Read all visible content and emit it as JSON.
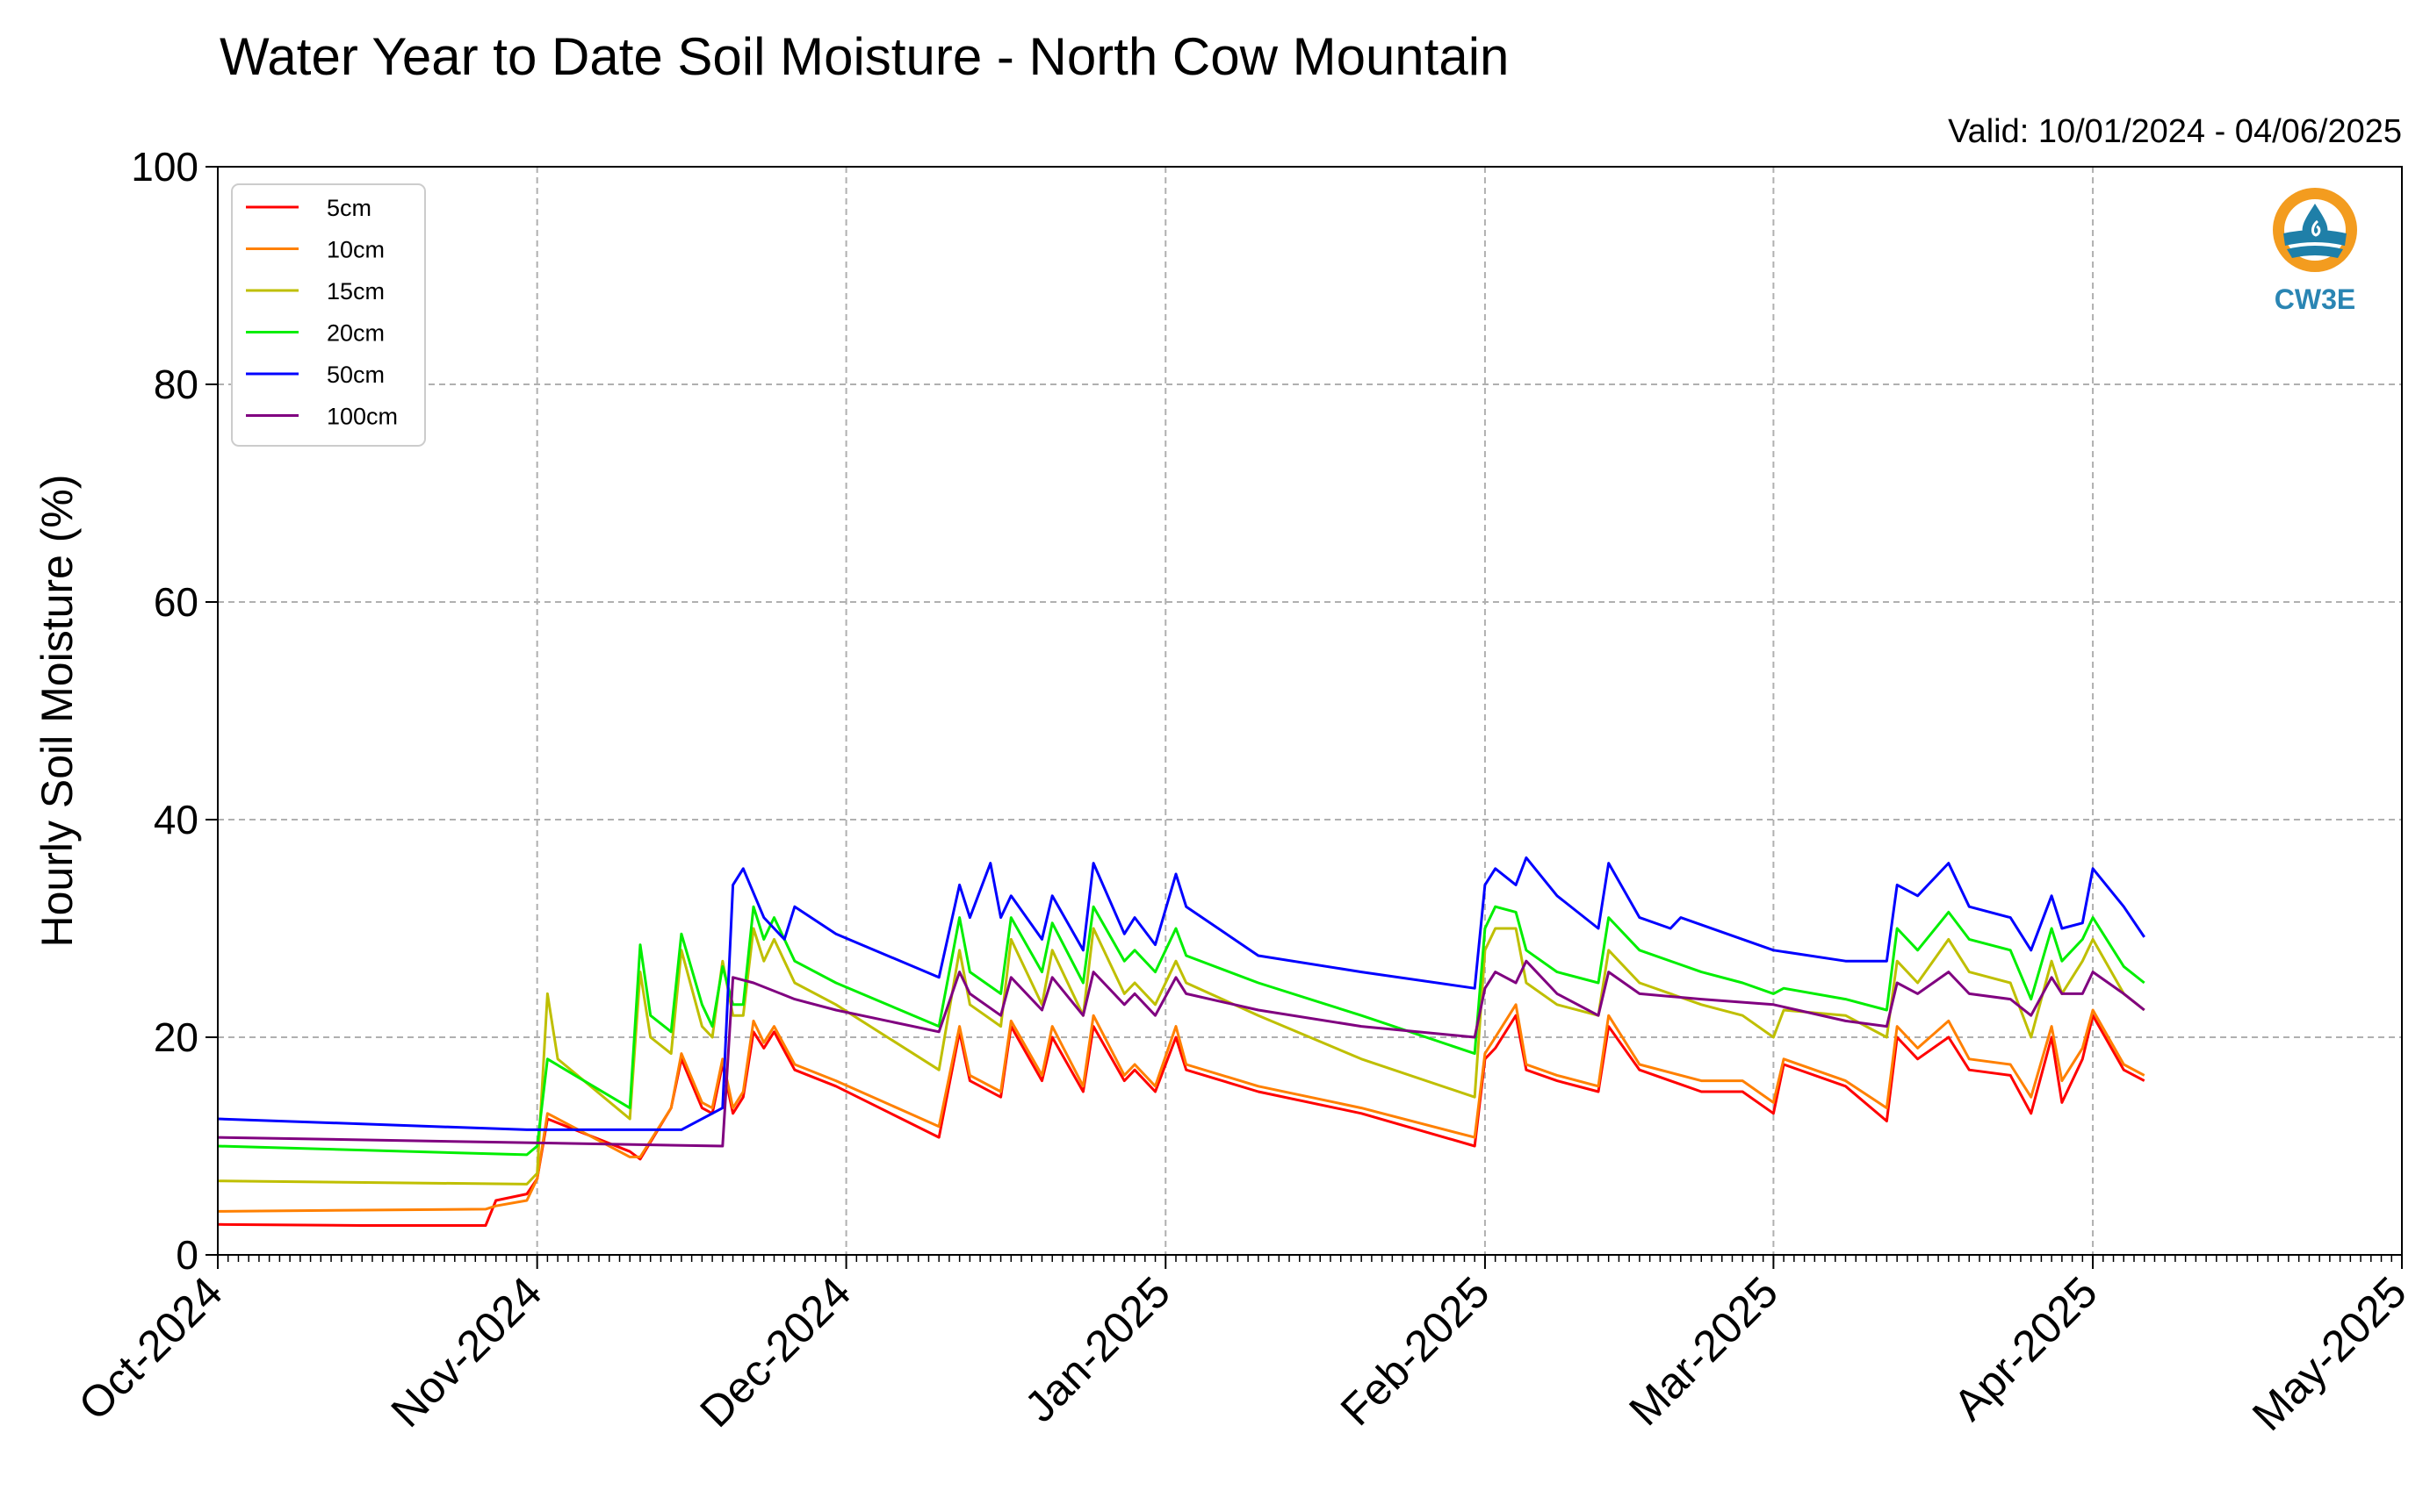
{
  "chart_data": {
    "type": "line",
    "title": "Water Year to Date Soil Moisture - North Cow Mountain",
    "subtitle": "Valid: 10/01/2024 - 04/06/2025",
    "xlabel": "",
    "ylabel": "Hourly Soil Moisture (%)",
    "ylim": [
      0,
      100
    ],
    "yticks": [
      0,
      20,
      40,
      60,
      80,
      100
    ],
    "xlim": [
      "2024-10-01",
      "2025-05-01"
    ],
    "xticks": [
      "2024-10-01",
      "2024-11-01",
      "2024-12-01",
      "2025-01-01",
      "2025-02-01",
      "2025-03-01",
      "2025-04-01",
      "2025-05-01"
    ],
    "xtick_labels": [
      "Oct-2024",
      "Nov-2024",
      "Dec-2024",
      "Jan-2025",
      "Feb-2025",
      "Mar-2025",
      "Apr-2025",
      "May-2025"
    ],
    "grid": true,
    "legend_position": "top-left",
    "series": [
      {
        "name": "5cm",
        "color": "#ff0000",
        "x": [
          "2024-10-01",
          "2024-10-15",
          "2024-10-27",
          "2024-10-28",
          "2024-10-31",
          "2024-11-01",
          "2024-11-02",
          "2024-11-10",
          "2024-11-11",
          "2024-11-14",
          "2024-11-15",
          "2024-11-17",
          "2024-11-18",
          "2024-11-19",
          "2024-11-20",
          "2024-11-21",
          "2024-11-22",
          "2024-11-23",
          "2024-11-24",
          "2024-11-26",
          "2024-11-30",
          "2024-12-10",
          "2024-12-12",
          "2024-12-13",
          "2024-12-16",
          "2024-12-17",
          "2024-12-20",
          "2024-12-21",
          "2024-12-24",
          "2024-12-25",
          "2024-12-28",
          "2024-12-29",
          "2024-12-31",
          "2025-01-02",
          "2025-01-03",
          "2025-01-10",
          "2025-01-20",
          "2025-01-31",
          "2025-02-01",
          "2025-02-02",
          "2025-02-04",
          "2025-02-05",
          "2025-02-08",
          "2025-02-12",
          "2025-02-13",
          "2025-02-16",
          "2025-02-22",
          "2025-02-26",
          "2025-03-01",
          "2025-03-02",
          "2025-03-08",
          "2025-03-12",
          "2025-03-13",
          "2025-03-15",
          "2025-03-18",
          "2025-03-20",
          "2025-03-24",
          "2025-03-26",
          "2025-03-28",
          "2025-03-29",
          "2025-03-31",
          "2025-04-01",
          "2025-04-04",
          "2025-04-06"
        ],
        "values": [
          2.8,
          2.7,
          2.7,
          5.0,
          5.6,
          7.0,
          12.5,
          9.5,
          8.8,
          13.5,
          18.0,
          13.5,
          13.0,
          17.5,
          13.0,
          14.5,
          20.5,
          19.0,
          20.5,
          17.0,
          15.5,
          10.8,
          20.5,
          16.0,
          14.5,
          21.0,
          16.0,
          20.0,
          15.0,
          21.0,
          16.0,
          17.0,
          15.0,
          20.0,
          17.0,
          15.0,
          13.0,
          10.0,
          18.0,
          19.0,
          22.0,
          17.0,
          16.0,
          15.0,
          21.0,
          17.0,
          15.0,
          15.0,
          13.0,
          17.5,
          15.5,
          12.3,
          20.0,
          18.0,
          20.0,
          17.0,
          16.5,
          13.0,
          20.0,
          14.0,
          18.0,
          22.0,
          17.0,
          16.0
        ]
      },
      {
        "name": "10cm",
        "color": "#ff8000",
        "x": [
          "2024-10-01",
          "2024-10-27",
          "2024-10-28",
          "2024-10-31",
          "2024-11-01",
          "2024-11-02",
          "2024-11-10",
          "2024-11-11",
          "2024-11-14",
          "2024-11-15",
          "2024-11-17",
          "2024-11-18",
          "2024-11-19",
          "2024-11-20",
          "2024-11-21",
          "2024-11-22",
          "2024-11-23",
          "2024-11-24",
          "2024-11-26",
          "2024-11-30",
          "2024-12-10",
          "2024-12-12",
          "2024-12-13",
          "2024-12-16",
          "2024-12-17",
          "2024-12-20",
          "2024-12-21",
          "2024-12-24",
          "2024-12-25",
          "2024-12-28",
          "2024-12-29",
          "2024-12-31",
          "2025-01-02",
          "2025-01-03",
          "2025-01-10",
          "2025-01-20",
          "2025-01-31",
          "2025-02-01",
          "2025-02-02",
          "2025-02-04",
          "2025-02-05",
          "2025-02-08",
          "2025-02-12",
          "2025-02-13",
          "2025-02-16",
          "2025-02-22",
          "2025-02-26",
          "2025-03-01",
          "2025-03-02",
          "2025-03-08",
          "2025-03-12",
          "2025-03-13",
          "2025-03-15",
          "2025-03-18",
          "2025-03-20",
          "2025-03-24",
          "2025-03-26",
          "2025-03-28",
          "2025-03-29",
          "2025-03-31",
          "2025-04-01",
          "2025-04-04",
          "2025-04-06"
        ],
        "values": [
          4.0,
          4.2,
          4.5,
          5.0,
          7.0,
          13.0,
          9.0,
          9.0,
          13.5,
          18.5,
          14.0,
          13.5,
          18.0,
          13.5,
          15.0,
          21.5,
          19.5,
          21.0,
          17.5,
          16.0,
          11.8,
          21.0,
          16.5,
          15.0,
          21.5,
          16.5,
          21.0,
          15.5,
          22.0,
          16.5,
          17.5,
          15.5,
          21.0,
          17.5,
          15.5,
          13.5,
          10.8,
          18.5,
          20.0,
          23.0,
          17.5,
          16.5,
          15.5,
          22.0,
          17.5,
          16.0,
          16.0,
          14.0,
          18.0,
          16.0,
          13.5,
          21.0,
          19.0,
          21.5,
          18.0,
          17.5,
          14.5,
          21.0,
          16.0,
          19.0,
          22.5,
          17.5,
          16.5
        ]
      },
      {
        "name": "15cm",
        "color": "#bfbf00",
        "x": [
          "2024-10-01",
          "2024-10-31",
          "2024-11-01",
          "2024-11-02",
          "2024-11-03",
          "2024-11-10",
          "2024-11-11",
          "2024-11-12",
          "2024-11-14",
          "2024-11-15",
          "2024-11-17",
          "2024-11-18",
          "2024-11-19",
          "2024-11-20",
          "2024-11-21",
          "2024-11-22",
          "2024-11-23",
          "2024-11-24",
          "2024-11-26",
          "2024-11-30",
          "2024-12-10",
          "2024-12-12",
          "2024-12-13",
          "2024-12-16",
          "2024-12-17",
          "2024-12-20",
          "2024-12-21",
          "2024-12-24",
          "2024-12-25",
          "2024-12-28",
          "2024-12-29",
          "2024-12-31",
          "2025-01-02",
          "2025-01-03",
          "2025-01-10",
          "2025-01-20",
          "2025-01-31",
          "2025-02-01",
          "2025-02-02",
          "2025-02-04",
          "2025-02-05",
          "2025-02-08",
          "2025-02-12",
          "2025-02-13",
          "2025-02-16",
          "2025-02-22",
          "2025-02-26",
          "2025-03-01",
          "2025-03-02",
          "2025-03-08",
          "2025-03-12",
          "2025-03-13",
          "2025-03-15",
          "2025-03-18",
          "2025-03-20",
          "2025-03-24",
          "2025-03-26",
          "2025-03-28",
          "2025-03-29",
          "2025-03-31",
          "2025-04-01",
          "2025-04-04",
          "2025-04-06"
        ],
        "values": [
          6.8,
          6.5,
          7.5,
          24.0,
          18.0,
          12.5,
          26.0,
          20.0,
          18.5,
          28.0,
          21.0,
          20.0,
          27.0,
          22.0,
          22.0,
          30.0,
          27.0,
          29.0,
          25.0,
          23.0,
          17.0,
          28.0,
          23.0,
          21.0,
          29.0,
          23.0,
          28.0,
          22.0,
          30.0,
          24.0,
          25.0,
          23.0,
          27.0,
          25.0,
          22.0,
          18.0,
          14.5,
          28.0,
          30.0,
          30.0,
          25.0,
          23.0,
          22.0,
          28.0,
          25.0,
          23.0,
          22.0,
          20.0,
          22.5,
          22.0,
          20.0,
          27.0,
          25.0,
          29.0,
          26.0,
          25.0,
          20.0,
          27.0,
          24.0,
          27.0,
          29.0,
          24.0,
          22.5
        ]
      },
      {
        "name": "20cm",
        "color": "#00ee00",
        "x": [
          "2024-10-01",
          "2024-10-31",
          "2024-11-01",
          "2024-11-02",
          "2024-11-10",
          "2024-11-11",
          "2024-11-12",
          "2024-11-14",
          "2024-11-15",
          "2024-11-17",
          "2024-11-18",
          "2024-11-19",
          "2024-11-20",
          "2024-11-21",
          "2024-11-22",
          "2024-11-23",
          "2024-11-24",
          "2024-11-26",
          "2024-11-30",
          "2024-12-10",
          "2024-12-12",
          "2024-12-13",
          "2024-12-16",
          "2024-12-17",
          "2024-12-20",
          "2024-12-21",
          "2024-12-24",
          "2024-12-25",
          "2024-12-28",
          "2024-12-29",
          "2024-12-31",
          "2025-01-02",
          "2025-01-03",
          "2025-01-10",
          "2025-01-20",
          "2025-01-31",
          "2025-02-01",
          "2025-02-02",
          "2025-02-04",
          "2025-02-05",
          "2025-02-08",
          "2025-02-12",
          "2025-02-13",
          "2025-02-16",
          "2025-02-22",
          "2025-02-26",
          "2025-03-01",
          "2025-03-02",
          "2025-03-08",
          "2025-03-12",
          "2025-03-13",
          "2025-03-15",
          "2025-03-18",
          "2025-03-20",
          "2025-03-24",
          "2025-03-26",
          "2025-03-28",
          "2025-03-29",
          "2025-03-31",
          "2025-04-01",
          "2025-04-04",
          "2025-04-06"
        ],
        "values": [
          10.0,
          9.2,
          10.0,
          18.0,
          13.5,
          28.5,
          22.0,
          20.5,
          29.5,
          23.0,
          21.0,
          26.5,
          23.0,
          23.0,
          32.0,
          29.0,
          31.0,
          27.0,
          25.0,
          21.0,
          31.0,
          26.0,
          24.0,
          31.0,
          26.0,
          30.5,
          25.0,
          32.0,
          27.0,
          28.0,
          26.0,
          30.0,
          27.5,
          25.0,
          22.0,
          18.5,
          30.0,
          32.0,
          31.5,
          28.0,
          26.0,
          25.0,
          31.0,
          28.0,
          26.0,
          25.0,
          24.0,
          24.5,
          23.5,
          22.5,
          30.0,
          28.0,
          31.5,
          29.0,
          28.0,
          23.5,
          30.0,
          27.0,
          29.0,
          31.0,
          26.5,
          25.0
        ]
      },
      {
        "name": "50cm",
        "color": "#0000ff",
        "x": [
          "2024-10-01",
          "2024-10-31",
          "2024-11-15",
          "2024-11-19",
          "2024-11-20",
          "2024-11-21",
          "2024-11-23",
          "2024-11-25",
          "2024-11-26",
          "2024-11-30",
          "2024-12-10",
          "2024-12-12",
          "2024-12-13",
          "2024-12-15",
          "2024-12-16",
          "2024-12-17",
          "2024-12-20",
          "2024-12-21",
          "2024-12-24",
          "2024-12-25",
          "2024-12-28",
          "2024-12-29",
          "2024-12-31",
          "2025-01-02",
          "2025-01-03",
          "2025-01-10",
          "2025-01-20",
          "2025-01-31",
          "2025-02-01",
          "2025-02-02",
          "2025-02-04",
          "2025-02-05",
          "2025-02-08",
          "2025-02-12",
          "2025-02-13",
          "2025-02-16",
          "2025-02-19",
          "2025-02-20",
          "2025-03-01",
          "2025-03-08",
          "2025-03-12",
          "2025-03-13",
          "2025-03-15",
          "2025-03-18",
          "2025-03-20",
          "2025-03-24",
          "2025-03-26",
          "2025-03-28",
          "2025-03-29",
          "2025-03-31",
          "2025-04-01",
          "2025-04-04",
          "2025-04-06"
        ],
        "values": [
          12.5,
          11.5,
          11.5,
          13.5,
          34.0,
          35.5,
          31.0,
          29.0,
          32.0,
          29.5,
          25.5,
          34.0,
          31.0,
          36.0,
          31.0,
          33.0,
          29.0,
          33.0,
          28.0,
          36.0,
          29.5,
          31.0,
          28.5,
          35.0,
          32.0,
          27.5,
          26.0,
          24.5,
          34.0,
          35.5,
          34.0,
          36.5,
          33.0,
          30.0,
          36.0,
          31.0,
          30.0,
          31.0,
          28.0,
          27.0,
          27.0,
          34.0,
          33.0,
          36.0,
          32.0,
          31.0,
          28.0,
          33.0,
          30.0,
          30.5,
          35.5,
          32.0,
          29.2
        ]
      },
      {
        "name": "100cm",
        "color": "#800080",
        "x": [
          "2024-10-01",
          "2024-11-19",
          "2024-11-20",
          "2024-11-22",
          "2024-11-26",
          "2024-11-30",
          "2024-12-10",
          "2024-12-12",
          "2024-12-13",
          "2024-12-16",
          "2024-12-17",
          "2024-12-20",
          "2024-12-21",
          "2024-12-24",
          "2024-12-25",
          "2024-12-28",
          "2024-12-29",
          "2024-12-31",
          "2025-01-02",
          "2025-01-03",
          "2025-01-10",
          "2025-01-20",
          "2025-01-31",
          "2025-02-01",
          "2025-02-02",
          "2025-02-04",
          "2025-02-05",
          "2025-02-08",
          "2025-02-12",
          "2025-02-13",
          "2025-02-16",
          "2025-02-22",
          "2025-03-01",
          "2025-03-08",
          "2025-03-12",
          "2025-03-13",
          "2025-03-15",
          "2025-03-18",
          "2025-03-20",
          "2025-03-24",
          "2025-03-26",
          "2025-03-28",
          "2025-03-29",
          "2025-03-31",
          "2025-04-01",
          "2025-04-04",
          "2025-04-06"
        ],
        "values": [
          10.8,
          10.0,
          25.5,
          25.0,
          23.5,
          22.5,
          20.5,
          26.0,
          24.0,
          22.0,
          25.5,
          22.5,
          25.5,
          22.0,
          26.0,
          23.0,
          24.0,
          22.0,
          25.5,
          24.0,
          22.5,
          21.0,
          20.0,
          24.5,
          26.0,
          25.0,
          27.0,
          24.0,
          22.0,
          26.0,
          24.0,
          23.5,
          23.0,
          21.5,
          21.0,
          25.0,
          24.0,
          26.0,
          24.0,
          23.5,
          22.0,
          25.5,
          24.0,
          24.0,
          26.0,
          24.0,
          22.5
        ]
      }
    ]
  },
  "logo": {
    "text": "CW3E",
    "ring_color": "#f39c1f",
    "body_color": "#1f7fa8"
  },
  "colors": {
    "grid": "#b0b0b0",
    "axis": "#000000"
  }
}
